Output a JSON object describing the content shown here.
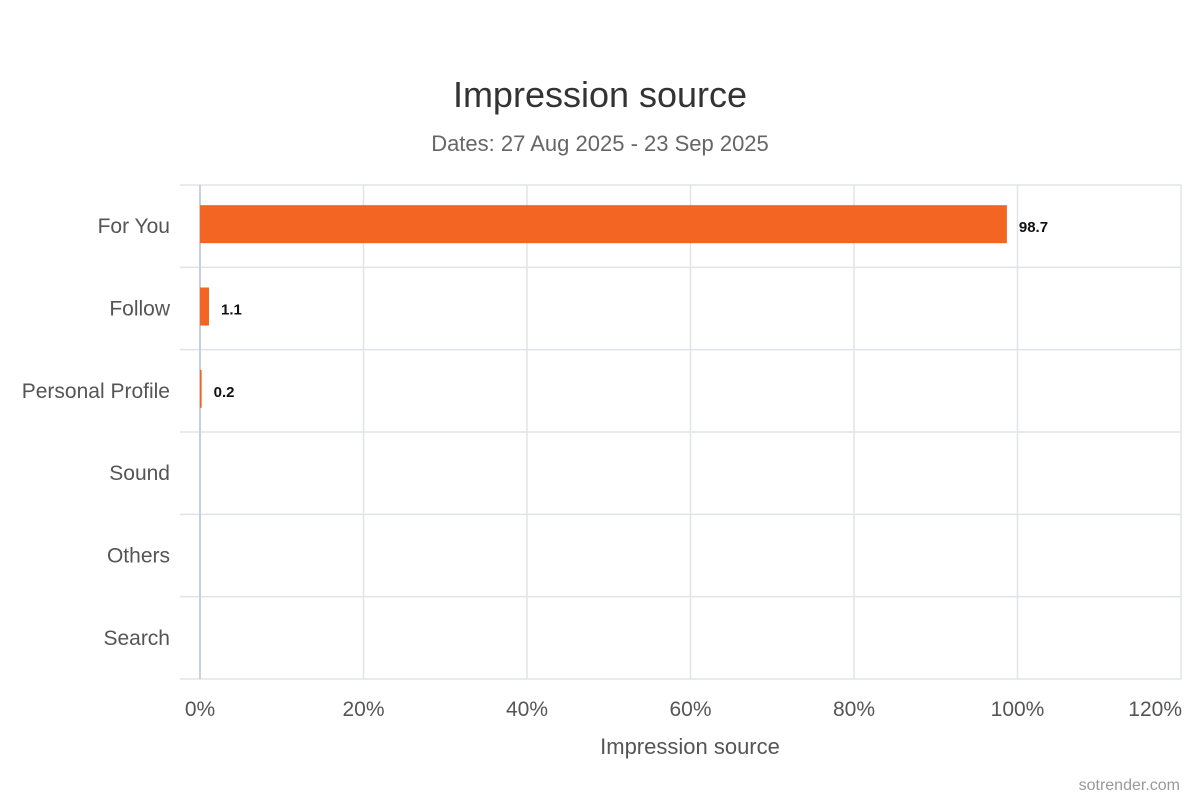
{
  "chart_data": {
    "type": "bar",
    "orientation": "horizontal",
    "title": "Impression source",
    "subtitle": "Dates: 27 Aug 2025 - 23 Sep 2025",
    "categories": [
      "For You",
      "Follow",
      "Personal Profile",
      "Sound",
      "Others",
      "Search"
    ],
    "values": [
      98.7,
      1.1,
      0.2,
      0,
      0,
      0
    ],
    "data_labels": [
      "98.7",
      "1.1",
      "0.2",
      "",
      "",
      ""
    ],
    "xlabel": "Impression source",
    "ylabel": "",
    "xlim": [
      0,
      120
    ],
    "x_ticks": [
      0,
      20,
      40,
      60,
      80,
      100,
      120
    ],
    "x_tick_labels": [
      "0%",
      "20%",
      "40%",
      "60%",
      "80%",
      "100%",
      "120%"
    ],
    "bar_color": "#f26522",
    "grid": true,
    "legend": "none"
  },
  "credit": "sotrender.com"
}
